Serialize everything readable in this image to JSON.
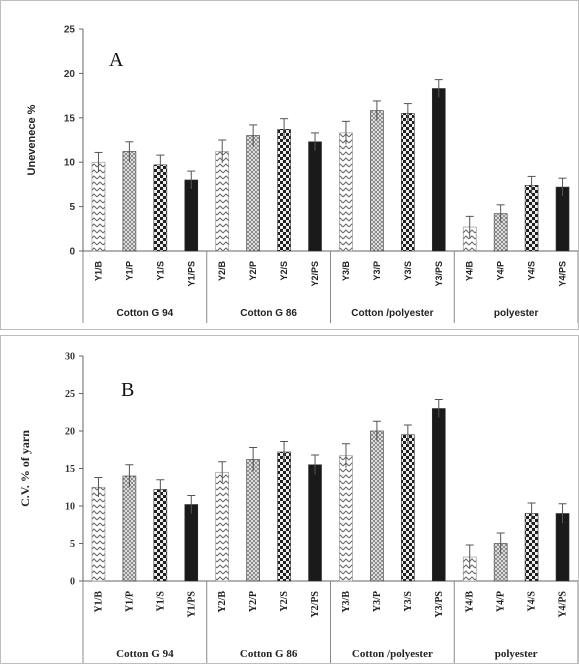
{
  "chart_data": [
    {
      "type": "bar",
      "panel_label": "A",
      "ylabel": "Unevenece %",
      "ylim": [
        0,
        25
      ],
      "yticks": [
        0,
        5,
        10,
        15,
        20,
        25
      ],
      "grid": false,
      "categories": [
        "Y1/B",
        "Y1/P",
        "Y1/S",
        "Y1/PS",
        "Y2/B",
        "Y2/P",
        "Y2/S",
        "Y2/PS",
        "Y3/B",
        "Y3/P",
        "Y3/S",
        "Y3/PS",
        "Y4/B",
        "Y4/P",
        "Y4/S",
        "Y4/PS"
      ],
      "values": [
        10.0,
        11.2,
        9.7,
        8.0,
        11.2,
        13.0,
        13.7,
        12.3,
        13.3,
        15.8,
        15.5,
        18.3,
        2.7,
        4.2,
        7.4,
        7.2
      ],
      "errors": [
        1.1,
        1.1,
        1.1,
        1.0,
        1.3,
        1.2,
        1.2,
        1.0,
        1.3,
        1.1,
        1.1,
        1.0,
        1.2,
        1.0,
        1.0,
        1.0
      ],
      "groups": [
        "Cotton G 94",
        "Cotton G 86",
        "Cotton /polyester",
        "polyester"
      ],
      "patterns": [
        "zigzag",
        "dots",
        "checker",
        "solid"
      ]
    },
    {
      "type": "bar",
      "panel_label": "B",
      "ylabel": "C.V. % of yarn",
      "ylim": [
        0,
        30
      ],
      "yticks": [
        0,
        5,
        10,
        15,
        20,
        25,
        30
      ],
      "grid": false,
      "categories": [
        "Y1/B",
        "Y1/P",
        "Y1/S",
        "Y1/PS",
        "Y2/B",
        "Y2/P",
        "Y2/S",
        "Y2/PS",
        "Y3/B",
        "Y3/P",
        "Y3/S",
        "Y3/PS",
        "Y4/B",
        "Y4/P",
        "Y4/S",
        "Y4/PS"
      ],
      "values": [
        12.5,
        14.0,
        12.2,
        10.2,
        14.5,
        16.2,
        17.2,
        15.5,
        16.7,
        20.0,
        19.5,
        23.0,
        3.2,
        5.0,
        9.0,
        9.0
      ],
      "errors": [
        1.3,
        1.5,
        1.3,
        1.2,
        1.4,
        1.6,
        1.4,
        1.3,
        1.6,
        1.3,
        1.3,
        1.2,
        1.6,
        1.4,
        1.4,
        1.3
      ],
      "groups": [
        "Cotton G 94",
        "Cotton G 86",
        "Cotton /polyester",
        "polyester"
      ],
      "patterns": [
        "zigzag",
        "dots",
        "checker",
        "solid"
      ]
    }
  ],
  "colors": {
    "bar_dark": "#1a1a1a",
    "bar_light": "#ffffff",
    "axis": "#555555",
    "frame": "#bdbdbd"
  }
}
